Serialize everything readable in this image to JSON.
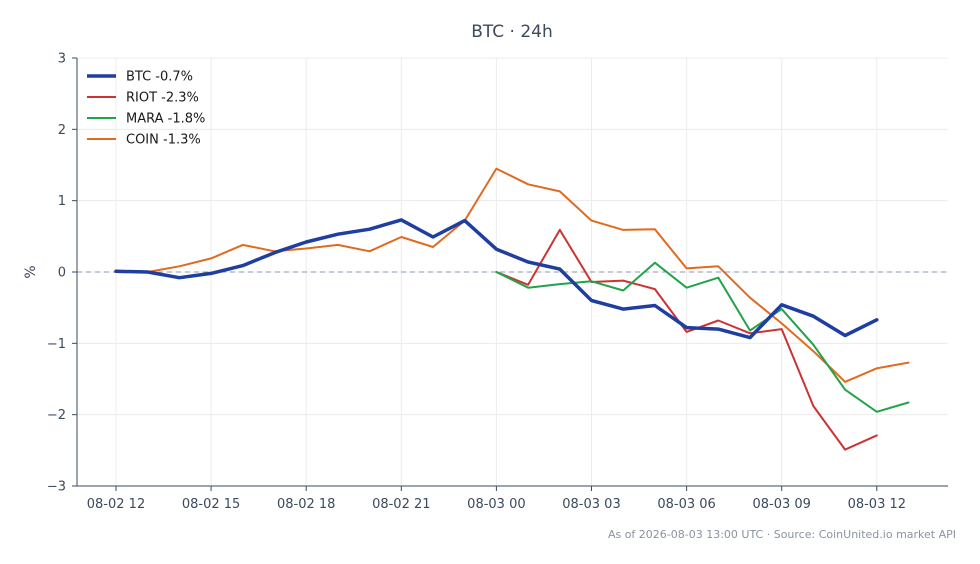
{
  "chart_data": {
    "type": "line",
    "title": "BTC · 24h",
    "xlabel": "",
    "ylabel": "%",
    "ylim": [
      -3,
      3
    ],
    "yticks": [
      3,
      2,
      1,
      0,
      -1,
      -2,
      -3
    ],
    "ytick_labels": [
      "3",
      "2",
      "1",
      "0",
      "−1",
      "−2",
      "−3"
    ],
    "xticks": [
      "08-02 12",
      "08-02 15",
      "08-02 18",
      "08-02 21",
      "08-03 00",
      "08-03 03",
      "08-03 06",
      "08-03 09",
      "08-03 12"
    ],
    "x": [
      "08-02 12",
      "08-02 13",
      "08-02 14",
      "08-02 15",
      "08-02 16",
      "08-02 17",
      "08-02 18",
      "08-02 19",
      "08-02 20",
      "08-02 21",
      "08-02 22",
      "08-02 23",
      "08-03 00",
      "08-03 01",
      "08-03 02",
      "08-03 03",
      "08-03 04",
      "08-03 05",
      "08-03 06",
      "08-03 07",
      "08-03 08",
      "08-03 09",
      "08-03 10",
      "08-03 11",
      "08-03 12",
      "08-03 13"
    ],
    "grid": true,
    "legend_position": "top-left",
    "baseline": 0,
    "series": [
      {
        "name": "BTC -0.7%",
        "color": "#1f3fa0",
        "width": 3.5,
        "values": [
          0.01,
          0.0,
          -0.08,
          -0.02,
          0.09,
          0.27,
          0.42,
          0.53,
          0.6,
          0.73,
          0.49,
          0.72,
          0.32,
          0.14,
          0.04,
          -0.4,
          -0.52,
          -0.47,
          -0.78,
          -0.8,
          -0.92,
          -0.46,
          -0.62,
          -0.89,
          -0.67,
          null
        ]
      },
      {
        "name": "RIOT -2.3%",
        "color": "#cc3333",
        "width": 2,
        "values": [
          null,
          null,
          null,
          null,
          null,
          null,
          null,
          null,
          null,
          null,
          null,
          null,
          0.0,
          -0.18,
          0.59,
          -0.14,
          -0.12,
          -0.24,
          -0.84,
          -0.68,
          -0.86,
          -0.8,
          -1.88,
          -2.49,
          -2.29,
          null
        ]
      },
      {
        "name": "MARA -1.8%",
        "color": "#22a34a",
        "width": 2,
        "values": [
          null,
          null,
          null,
          null,
          null,
          null,
          null,
          null,
          null,
          null,
          null,
          null,
          0.0,
          -0.22,
          -0.17,
          -0.13,
          -0.26,
          0.13,
          -0.22,
          -0.08,
          -0.82,
          -0.52,
          -1.02,
          -1.65,
          -1.96,
          -1.83
        ]
      },
      {
        "name": "COIN -1.3%",
        "color": "#e06a1f",
        "width": 2,
        "values": [
          null,
          0.0,
          0.08,
          0.19,
          0.38,
          0.29,
          0.33,
          0.38,
          0.29,
          0.49,
          0.35,
          0.72,
          1.45,
          1.23,
          1.13,
          0.72,
          0.59,
          0.6,
          0.05,
          0.08,
          -0.36,
          -0.72,
          -1.11,
          -1.54,
          -1.35,
          -1.27
        ]
      }
    ]
  },
  "footer": {
    "note": "As of 2026-08-03 13:00 UTC · Source: CoinUnited.io market API"
  }
}
